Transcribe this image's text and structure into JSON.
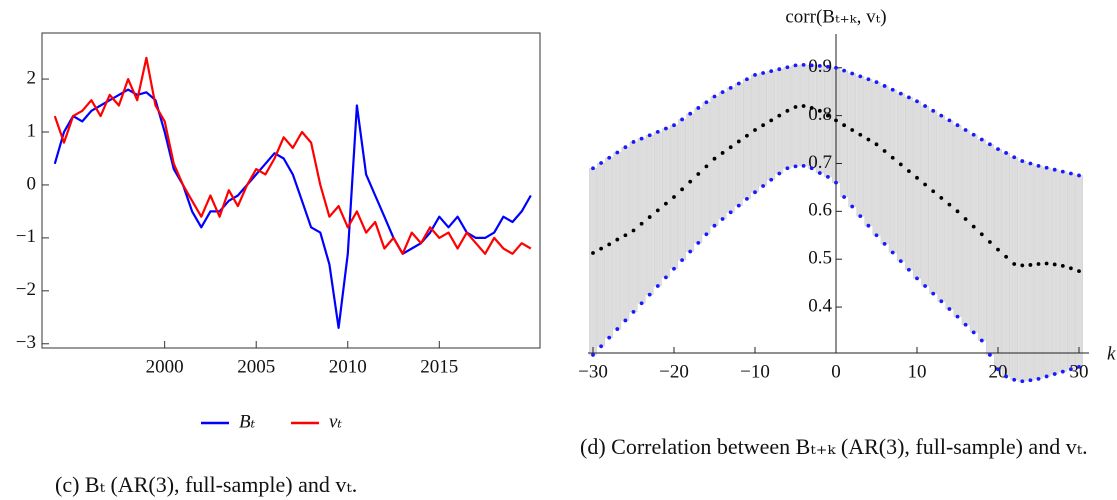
{
  "chart_data": [
    {
      "type": "line",
      "caption": "(c) Bₜ (AR(3), full-sample) and vₜ.",
      "x": [
        1994,
        1994.5,
        1995,
        1995.5,
        1996,
        1996.5,
        1997,
        1997.5,
        1998,
        1998.5,
        1999,
        1999.5,
        2000,
        2000.5,
        2001,
        2001.5,
        2002,
        2002.5,
        2003,
        2003.5,
        2004,
        2004.5,
        2005,
        2005.5,
        2006,
        2006.5,
        2007,
        2007.5,
        2008,
        2008.5,
        2009,
        2009.5,
        2010,
        2010.5,
        2011,
        2011.5,
        2012,
        2012.5,
        2013,
        2013.5,
        2014,
        2014.5,
        2015,
        2015.5,
        2016,
        2016.5,
        2017,
        2017.5,
        2018,
        2018.5,
        2019,
        2019.5,
        2020
      ],
      "series": [
        {
          "name": "Bₜ",
          "color": "#0000ff",
          "values": [
            0.4,
            1.0,
            1.3,
            1.2,
            1.4,
            1.5,
            1.6,
            1.7,
            1.8,
            1.7,
            1.75,
            1.6,
            1.0,
            0.3,
            0.0,
            -0.5,
            -0.8,
            -0.5,
            -0.5,
            -0.3,
            -0.2,
            0.0,
            0.2,
            0.4,
            0.6,
            0.5,
            0.2,
            -0.3,
            -0.8,
            -0.9,
            -1.5,
            -2.7,
            -1.3,
            1.5,
            0.2,
            -0.2,
            -0.6,
            -1.0,
            -1.3,
            -1.2,
            -1.1,
            -0.9,
            -0.6,
            -0.8,
            -0.6,
            -0.9,
            -1.0,
            -1.0,
            -0.9,
            -0.6,
            -0.7,
            -0.5,
            -0.2
          ]
        },
        {
          "name": "vₜ",
          "color": "#ff0000",
          "values": [
            1.3,
            0.8,
            1.3,
            1.4,
            1.6,
            1.3,
            1.7,
            1.5,
            2.0,
            1.6,
            2.4,
            1.5,
            1.2,
            0.4,
            0.0,
            -0.3,
            -0.6,
            -0.2,
            -0.6,
            -0.1,
            -0.4,
            0.0,
            0.3,
            0.2,
            0.5,
            0.9,
            0.7,
            1.0,
            0.8,
            0.0,
            -0.6,
            -0.4,
            -0.8,
            -0.5,
            -0.9,
            -0.7,
            -1.2,
            -1.0,
            -1.3,
            -0.9,
            -1.1,
            -0.8,
            -1.0,
            -0.9,
            -1.2,
            -0.9,
            -1.1,
            -1.3,
            -1.0,
            -1.2,
            -1.3,
            -1.1,
            -1.2
          ]
        }
      ],
      "xlim": [
        1993.3,
        2020.5
      ],
      "xticks": [
        2000,
        2005,
        2010,
        2015
      ],
      "ylim": [
        -3.08,
        2.87
      ],
      "yticks": [
        2,
        1,
        0,
        {
          "value": -1,
          "label": "−1"
        },
        {
          "value": -2,
          "label": "−2"
        },
        {
          "value": -3,
          "label": "−3"
        }
      ],
      "legend": "bottom"
    },
    {
      "type": "dot",
      "caption": "(d) Correlation between Bₜ₊ₖ (AR(3), full-sample) and vₜ.",
      "y_label": "corr(Bₜ₊ₖ, vₜ)",
      "x_label": "k",
      "x": [
        -30,
        -29,
        -28,
        -27,
        -26,
        -25,
        -24,
        -23,
        -22,
        -21,
        -20,
        -19,
        -18,
        -17,
        -16,
        -15,
        -14,
        -13,
        -12,
        -11,
        -10,
        -9,
        -8,
        -7,
        -6,
        -5,
        -4,
        -3,
        -2,
        -1,
        0,
        1,
        2,
        3,
        4,
        5,
        6,
        7,
        8,
        9,
        10,
        11,
        12,
        13,
        14,
        15,
        16,
        17,
        18,
        19,
        20,
        21,
        22,
        23,
        24,
        25,
        26,
        27,
        28,
        29,
        30
      ],
      "series": [
        {
          "color": "#000000",
          "values": [
            0.513,
            0.522,
            0.531,
            0.541,
            0.55,
            0.56,
            0.574,
            0.588,
            0.602,
            0.616,
            0.63,
            0.646,
            0.662,
            0.678,
            0.694,
            0.71,
            0.722,
            0.734,
            0.746,
            0.758,
            0.77,
            0.78,
            0.79,
            0.8,
            0.81,
            0.818,
            0.82,
            0.816,
            0.81,
            0.8,
            0.79,
            0.78,
            0.77,
            0.76,
            0.75,
            0.74,
            0.726,
            0.712,
            0.698,
            0.684,
            0.67,
            0.656,
            0.642,
            0.628,
            0.614,
            0.6,
            0.584,
            0.568,
            0.552,
            0.536,
            0.52,
            0.505,
            0.49,
            0.487,
            0.488,
            0.49,
            0.491,
            0.489,
            0.486,
            0.481,
            0.475
          ]
        }
      ],
      "interval": {
        "color": "#dddddd",
        "marker_color": "#1a1aff",
        "upper": [
          0.69,
          0.701,
          0.712,
          0.723,
          0.734,
          0.745,
          0.752,
          0.759,
          0.766,
          0.773,
          0.78,
          0.792,
          0.804,
          0.816,
          0.828,
          0.84,
          0.849,
          0.858,
          0.867,
          0.876,
          0.885,
          0.889,
          0.893,
          0.897,
          0.901,
          0.905,
          0.906,
          0.905,
          0.904,
          0.902,
          0.9,
          0.894,
          0.888,
          0.882,
          0.876,
          0.87,
          0.862,
          0.854,
          0.846,
          0.838,
          0.83,
          0.82,
          0.81,
          0.8,
          0.79,
          0.78,
          0.77,
          0.76,
          0.75,
          0.74,
          0.73,
          0.722,
          0.713,
          0.705,
          0.7,
          0.695,
          0.691,
          0.687,
          0.683,
          0.679,
          0.675
        ],
        "lower": [
          0.3,
          0.318,
          0.336,
          0.354,
          0.372,
          0.39,
          0.408,
          0.426,
          0.444,
          0.462,
          0.48,
          0.498,
          0.516,
          0.534,
          0.552,
          0.57,
          0.584,
          0.598,
          0.612,
          0.626,
          0.64,
          0.653,
          0.666,
          0.679,
          0.69,
          0.694,
          0.695,
          0.69,
          0.68,
          0.672,
          0.66,
          0.63,
          0.61,
          0.59,
          0.57,
          0.55,
          0.532,
          0.514,
          0.496,
          0.478,
          0.46,
          0.444,
          0.428,
          0.412,
          0.396,
          0.38,
          0.363,
          0.347,
          0.33,
          0.3,
          0.27,
          0.255,
          0.248,
          0.245,
          0.247,
          0.25,
          0.255,
          0.26,
          0.265,
          0.27,
          0.275
        ]
      },
      "xlim": [
        -30,
        30
      ],
      "xticks": [
        {
          "value": -30,
          "label": "−30"
        },
        {
          "value": -20,
          "label": "−20"
        },
        {
          "value": -10,
          "label": "−10"
        },
        0,
        10,
        20,
        30
      ],
      "ylim": [
        0.304,
        0.958
      ],
      "yticks": [
        0.4,
        0.5,
        0.6,
        0.7,
        0.8,
        0.9
      ]
    }
  ]
}
